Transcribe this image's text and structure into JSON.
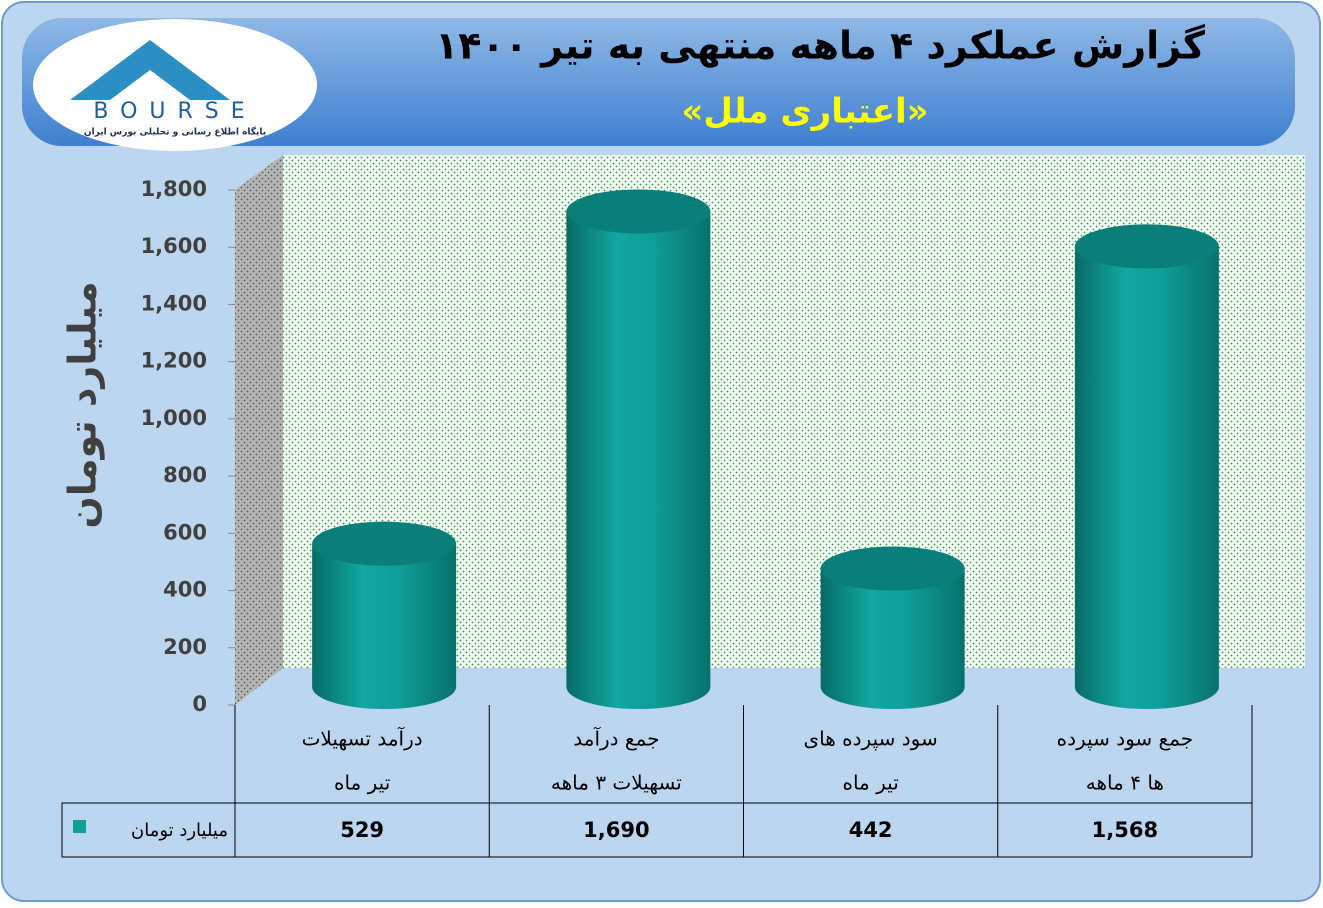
{
  "logo": {
    "brand": "BOURSE",
    "tagline": "پایگاه اطلاع رسانی و تحلیلی بورس ایران"
  },
  "chart_data": {
    "type": "bar",
    "title": "گزارش عملکرد ۴ ماهه منتهی به تیر ۱۴۰۰",
    "subtitle": "«اعتباری ملل»",
    "y_label": "میلیارد تومان",
    "categories": [
      [
        "درآمد تسهیلات",
        "تیر ماه"
      ],
      [
        "جمع درآمد",
        "تسهیلات ۳ ماهه"
      ],
      [
        "سود سپرده های",
        "تیر ماه"
      ],
      [
        "جمع سود سپرده",
        "ها ۴ ماهه"
      ]
    ],
    "series": [
      {
        "name": "میلیارد تومان",
        "color": "#0f9e98",
        "values": [
          529,
          1690,
          442,
          1568
        ],
        "value_labels": [
          "529",
          "1,690",
          "442",
          "1,568"
        ]
      }
    ],
    "ylim": [
      0,
      1800
    ],
    "yticks": [
      0,
      200,
      400,
      600,
      800,
      {
        "value": 1000,
        "label": "1,000"
      },
      {
        "value": 1200,
        "label": "1,200"
      },
      {
        "value": 1400,
        "label": "1,400"
      },
      {
        "value": 1600,
        "label": "1,600"
      },
      {
        "value": 1800,
        "label": "1,800"
      }
    ],
    "grid": false,
    "data_table": true
  }
}
